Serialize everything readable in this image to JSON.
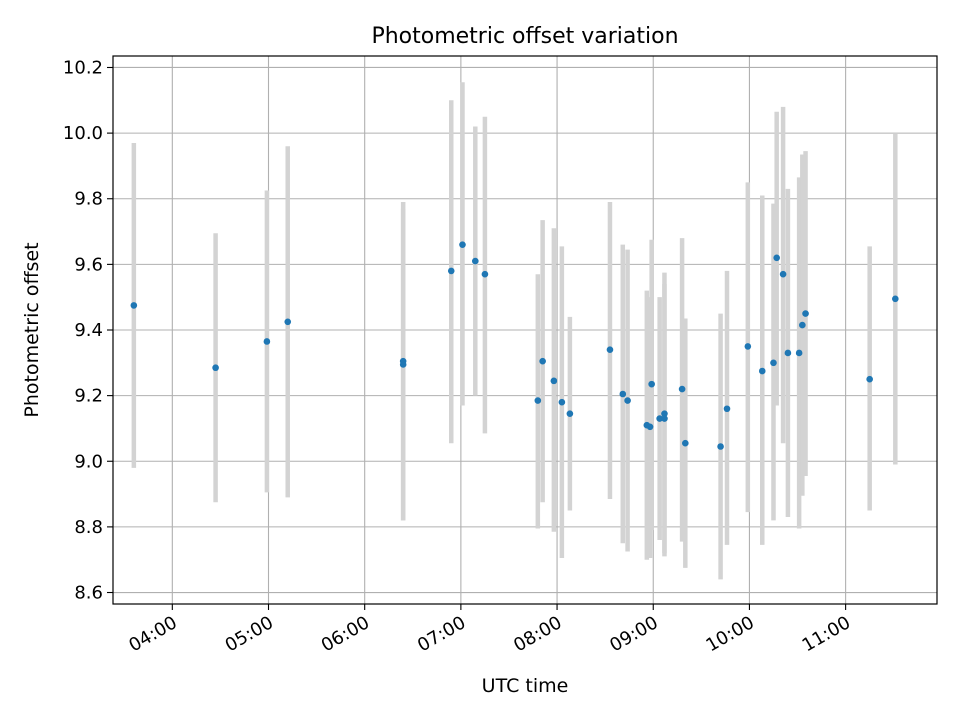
{
  "chart_data": {
    "type": "scatter",
    "title": "Photometric offset variation",
    "xlabel": "UTC time",
    "ylabel": "Photometric offset",
    "xlim": [
      "03:23",
      "11:57"
    ],
    "ylim": [
      8.565,
      10.235
    ],
    "grid": true,
    "x_ticks": [
      "04:00",
      "05:00",
      "06:00",
      "07:00",
      "08:00",
      "09:00",
      "10:00",
      "11:00"
    ],
    "y_ticks": [
      "8.6",
      "8.8",
      "9.0",
      "9.2",
      "9.4",
      "9.6",
      "9.8",
      "10.0",
      "10.2"
    ],
    "colors": {
      "points": "#1f77b4",
      "error_bars": "#d3d3d3",
      "grid": "#b0b0b0"
    },
    "series": [
      {
        "points": [
          {
            "time": "03:36",
            "y": 9.475,
            "ylo": 8.98,
            "yhi": 9.97
          },
          {
            "time": "04:27",
            "y": 9.285,
            "ylo": 8.875,
            "yhi": 9.695
          },
          {
            "time": "04:59",
            "y": 9.365,
            "ylo": 8.905,
            "yhi": 9.825
          },
          {
            "time": "05:12",
            "y": 9.425,
            "ylo": 8.89,
            "yhi": 9.96
          },
          {
            "time": "06:24",
            "y": 9.305,
            "ylo": 8.82,
            "yhi": 9.79
          },
          {
            "time": "06:24",
            "y": 9.295,
            "ylo": 8.82,
            "yhi": 9.77
          },
          {
            "time": "06:54",
            "y": 9.58,
            "ylo": 9.055,
            "yhi": 10.1
          },
          {
            "time": "07:01",
            "y": 9.66,
            "ylo": 9.17,
            "yhi": 10.155
          },
          {
            "time": "07:09",
            "y": 9.61,
            "ylo": 9.2,
            "yhi": 10.02
          },
          {
            "time": "07:15",
            "y": 9.57,
            "ylo": 9.085,
            "yhi": 10.05
          },
          {
            "time": "07:48",
            "y": 9.185,
            "ylo": 8.795,
            "yhi": 9.57
          },
          {
            "time": "07:51",
            "y": 9.305,
            "ylo": 8.875,
            "yhi": 9.735
          },
          {
            "time": "07:58",
            "y": 9.245,
            "ylo": 8.785,
            "yhi": 9.71
          },
          {
            "time": "08:03",
            "y": 9.18,
            "ylo": 8.705,
            "yhi": 9.655
          },
          {
            "time": "08:08",
            "y": 9.145,
            "ylo": 8.85,
            "yhi": 9.44
          },
          {
            "time": "08:33",
            "y": 9.34,
            "ylo": 8.885,
            "yhi": 9.79
          },
          {
            "time": "08:41",
            "y": 9.205,
            "ylo": 8.75,
            "yhi": 9.66
          },
          {
            "time": "08:44",
            "y": 9.185,
            "ylo": 8.725,
            "yhi": 9.645
          },
          {
            "time": "08:56",
            "y": 9.11,
            "ylo": 8.7,
            "yhi": 9.52
          },
          {
            "time": "08:58",
            "y": 9.105,
            "ylo": 8.705,
            "yhi": 9.5
          },
          {
            "time": "08:59",
            "y": 9.235,
            "ylo": 8.79,
            "yhi": 9.675
          },
          {
            "time": "09:04",
            "y": 9.13,
            "ylo": 8.76,
            "yhi": 9.5
          },
          {
            "time": "09:07",
            "y": 9.145,
            "ylo": 8.71,
            "yhi": 9.575
          },
          {
            "time": "09:07",
            "y": 9.13,
            "ylo": 8.72,
            "yhi": 9.54
          },
          {
            "time": "09:18",
            "y": 9.22,
            "ylo": 8.755,
            "yhi": 9.68
          },
          {
            "time": "09:20",
            "y": 9.055,
            "ylo": 8.675,
            "yhi": 9.435
          },
          {
            "time": "09:42",
            "y": 9.045,
            "ylo": 8.64,
            "yhi": 9.45
          },
          {
            "time": "09:46",
            "y": 9.16,
            "ylo": 8.745,
            "yhi": 9.58
          },
          {
            "time": "09:59",
            "y": 9.35,
            "ylo": 8.845,
            "yhi": 9.85
          },
          {
            "time": "10:08",
            "y": 9.275,
            "ylo": 8.745,
            "yhi": 9.81
          },
          {
            "time": "10:15",
            "y": 9.3,
            "ylo": 8.82,
            "yhi": 9.785
          },
          {
            "time": "10:17",
            "y": 9.62,
            "ylo": 9.17,
            "yhi": 10.065
          },
          {
            "time": "10:21",
            "y": 9.57,
            "ylo": 9.055,
            "yhi": 10.08
          },
          {
            "time": "10:24",
            "y": 9.33,
            "ylo": 8.83,
            "yhi": 9.83
          },
          {
            "time": "10:31",
            "y": 9.33,
            "ylo": 8.795,
            "yhi": 9.865
          },
          {
            "time": "10:33",
            "y": 9.415,
            "ylo": 8.895,
            "yhi": 9.935
          },
          {
            "time": "10:35",
            "y": 9.45,
            "ylo": 8.955,
            "yhi": 9.945
          },
          {
            "time": "11:15",
            "y": 9.25,
            "ylo": 8.85,
            "yhi": 9.655
          },
          {
            "time": "11:31",
            "y": 9.495,
            "ylo": 8.99,
            "yhi": 10.0
          }
        ]
      }
    ]
  }
}
